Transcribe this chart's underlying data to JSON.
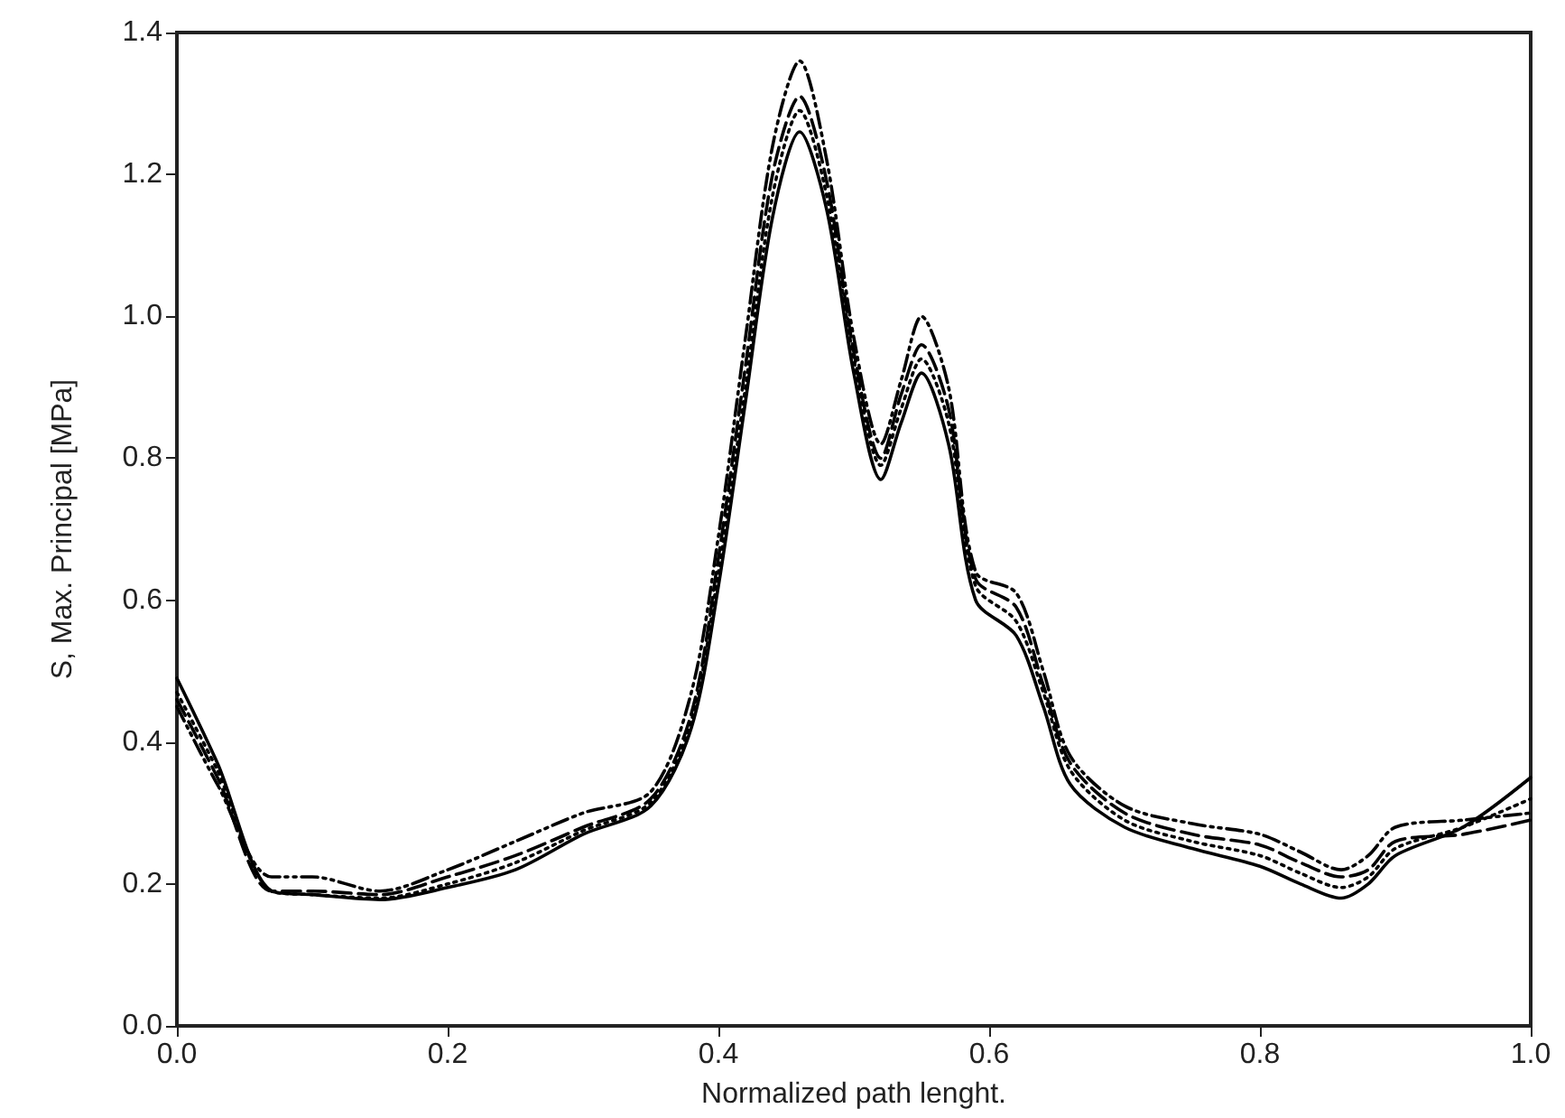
{
  "chart_data": {
    "type": "line",
    "xlabel": "Normalized path lenght.",
    "ylabel": "S, Max. Principal [MPa]",
    "xlim": [
      0,
      1
    ],
    "ylim": [
      0,
      1.4
    ],
    "xticks": [
      {
        "value": 0,
        "label": "0.0"
      },
      0.2,
      0.4,
      0.6,
      0.8,
      {
        "value": 1,
        "label": "1.0"
      }
    ],
    "yticks": [
      {
        "value": 0,
        "label": "0.0"
      },
      0.2,
      0.4,
      0.6,
      0.8,
      {
        "value": 1,
        "label": "1.0"
      },
      1.2,
      1.4
    ],
    "grid": false,
    "marker": "none",
    "x": [
      0,
      0.03,
      0.07,
      0.1,
      0.15,
      0.2,
      0.25,
      0.3,
      0.35,
      0.38,
      0.4,
      0.42,
      0.44,
      0.46,
      0.48,
      0.5,
      0.52,
      0.535,
      0.55,
      0.57,
      0.59,
      0.62,
      0.64,
      0.66,
      0.7,
      0.75,
      0.8,
      0.83,
      0.86,
      0.88,
      0.9,
      0.95,
      1
    ],
    "series": [
      {
        "color": "#000000",
        "line_style": "solid",
        "values": [
          0.49,
          0.37,
          0.19,
          0.185,
          0.178,
          0.195,
          0.22,
          0.27,
          0.31,
          0.42,
          0.62,
          0.88,
          1.14,
          1.26,
          1.15,
          0.92,
          0.77,
          0.85,
          0.92,
          0.82,
          0.6,
          0.55,
          0.45,
          0.34,
          0.28,
          0.25,
          0.225,
          0.2,
          0.18,
          0.2,
          0.24,
          0.28,
          0.35
        ]
      },
      {
        "color": "#000000",
        "line_style": "dotted",
        "values": [
          0.47,
          0.36,
          0.19,
          0.185,
          0.18,
          0.2,
          0.23,
          0.275,
          0.315,
          0.43,
          0.64,
          0.9,
          1.17,
          1.29,
          1.17,
          0.94,
          0.79,
          0.87,
          0.94,
          0.85,
          0.62,
          0.57,
          0.47,
          0.36,
          0.29,
          0.26,
          0.24,
          0.215,
          0.195,
          0.21,
          0.25,
          0.28,
          0.32
        ]
      },
      {
        "color": "#000000",
        "line_style": "dashed",
        "values": [
          0.46,
          0.35,
          0.19,
          0.19,
          0.185,
          0.21,
          0.24,
          0.28,
          0.32,
          0.44,
          0.66,
          0.93,
          1.2,
          1.31,
          1.19,
          0.95,
          0.8,
          0.89,
          0.96,
          0.87,
          0.63,
          0.59,
          0.48,
          0.37,
          0.3,
          0.27,
          0.255,
          0.23,
          0.21,
          0.22,
          0.26,
          0.27,
          0.29
        ]
      },
      {
        "color": "#000000",
        "line_style": "dashdot",
        "values": [
          0.45,
          0.34,
          0.21,
          0.21,
          0.19,
          0.22,
          0.26,
          0.3,
          0.33,
          0.47,
          0.69,
          0.97,
          1.24,
          1.36,
          1.22,
          0.97,
          0.82,
          0.91,
          1.0,
          0.9,
          0.64,
          0.61,
          0.5,
          0.38,
          0.31,
          0.285,
          0.27,
          0.245,
          0.22,
          0.24,
          0.28,
          0.29,
          0.3
        ]
      }
    ]
  }
}
